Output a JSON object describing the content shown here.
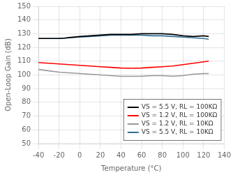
{
  "chart_data": {
    "type": "line",
    "xlabel": "Temperature (°C)",
    "ylabel": "Open-Loop Gain (dB)",
    "xlim": [
      -40,
      140
    ],
    "ylim": [
      50,
      150
    ],
    "xticks": [
      -40,
      -20,
      0,
      20,
      40,
      60,
      80,
      100,
      120,
      140
    ],
    "yticks": [
      50,
      60,
      70,
      80,
      90,
      100,
      110,
      120,
      130,
      140,
      150
    ],
    "grid": true,
    "legend": "lower right",
    "series": [
      {
        "name": "VS = 5.5 V, RL = 100KΩ",
        "color": "#000000",
        "x": [
          -40,
          -30,
          -20,
          -15,
          -10,
          0,
          10,
          20,
          30,
          40,
          50,
          60,
          70,
          80,
          90,
          100,
          110,
          120,
          125
        ],
        "values": [
          126.5,
          126.5,
          126.5,
          126.8,
          127.2,
          128.0,
          128.5,
          129.0,
          129.5,
          129.5,
          129.5,
          130.0,
          130.0,
          130.0,
          129.5,
          128.5,
          128.0,
          128.5,
          128.0
        ]
      },
      {
        "name": "VS = 1.2 V, RL = 100KΩ",
        "color": "#ff0000",
        "x": [
          -40,
          -30,
          -20,
          -10,
          0,
          10,
          20,
          30,
          40,
          50,
          60,
          70,
          80,
          90,
          100,
          110,
          120,
          125
        ],
        "values": [
          109.0,
          108.5,
          108.0,
          107.5,
          107.0,
          106.5,
          106.0,
          105.5,
          105.0,
          104.8,
          105.0,
          105.5,
          106.0,
          106.5,
          107.5,
          108.5,
          109.5,
          110.0
        ]
      },
      {
        "name": "VS = 1.2 V, RL = 10KΩ",
        "color": "#999999",
        "x": [
          -40,
          -30,
          -20,
          -10,
          0,
          10,
          20,
          30,
          40,
          50,
          60,
          70,
          80,
          90,
          100,
          110,
          120,
          125
        ],
        "values": [
          104.0,
          103.0,
          102.0,
          101.5,
          101.0,
          100.5,
          100.0,
          99.5,
          99.0,
          99.0,
          99.0,
          99.5,
          99.5,
          99.0,
          99.5,
          100.5,
          101.0,
          101.0
        ]
      },
      {
        "name": "VS = 5.5 V, RL = 10KΩ",
        "color": "#336e96",
        "x": [
          -40,
          -30,
          -20,
          -10,
          0,
          10,
          20,
          30,
          40,
          50,
          60,
          70,
          80,
          90,
          100,
          110,
          120,
          125
        ],
        "values": [
          126.5,
          126.5,
          126.5,
          127.0,
          127.5,
          128.0,
          128.5,
          129.0,
          129.0,
          129.0,
          129.0,
          128.5,
          128.5,
          128.0,
          127.5,
          127.0,
          126.5,
          126.0
        ]
      }
    ]
  }
}
